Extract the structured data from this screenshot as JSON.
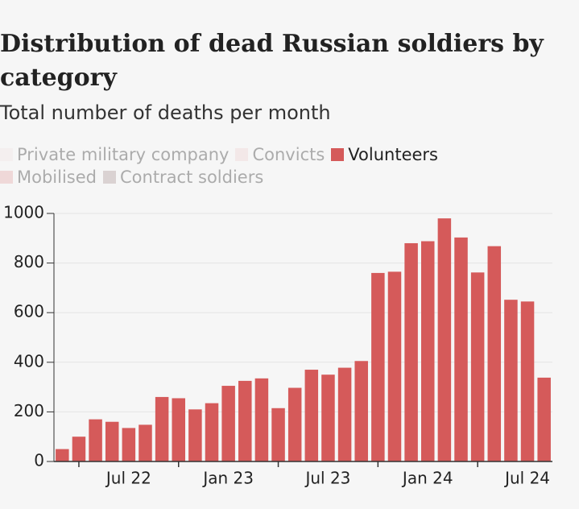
{
  "chart_data": {
    "type": "bar",
    "title": "Distribution of dead Russian soldiers by category",
    "subtitle": "Total number of deaths per month",
    "legend": [
      {
        "name": "Private military company",
        "color": "#f3e3e3",
        "hidden": true
      },
      {
        "name": "Convicts",
        "color": "#efcfcf",
        "hidden": true
      },
      {
        "name": "Volunteers",
        "color": "#d55a5a",
        "hidden": false
      },
      {
        "name": "Mobilised",
        "color": "#e3a3a3",
        "hidden": true
      },
      {
        "name": "Contract soldiers",
        "color": "#a89090",
        "hidden": true
      }
    ],
    "categories": [
      null,
      null,
      null,
      null,
      "Jul 22",
      null,
      null,
      null,
      null,
      null,
      "Jan 23",
      null,
      null,
      null,
      null,
      null,
      "Jul 23",
      null,
      null,
      null,
      null,
      null,
      "Jan 24",
      null,
      null,
      null,
      null,
      null,
      "Jul 24",
      null
    ],
    "series": [
      {
        "name": "Volunteers",
        "color": "#d55a5a",
        "values": [
          50,
          100,
          170,
          160,
          135,
          148,
          260,
          255,
          210,
          235,
          305,
          325,
          335,
          215,
          297,
          370,
          350,
          378,
          405,
          760,
          765,
          880,
          888,
          980,
          903,
          762,
          868,
          652,
          645,
          338
        ]
      }
    ],
    "ylim": [
      0,
      1000
    ],
    "yticks": [
      0,
      200,
      400,
      600,
      800,
      1000
    ],
    "grid": true
  }
}
